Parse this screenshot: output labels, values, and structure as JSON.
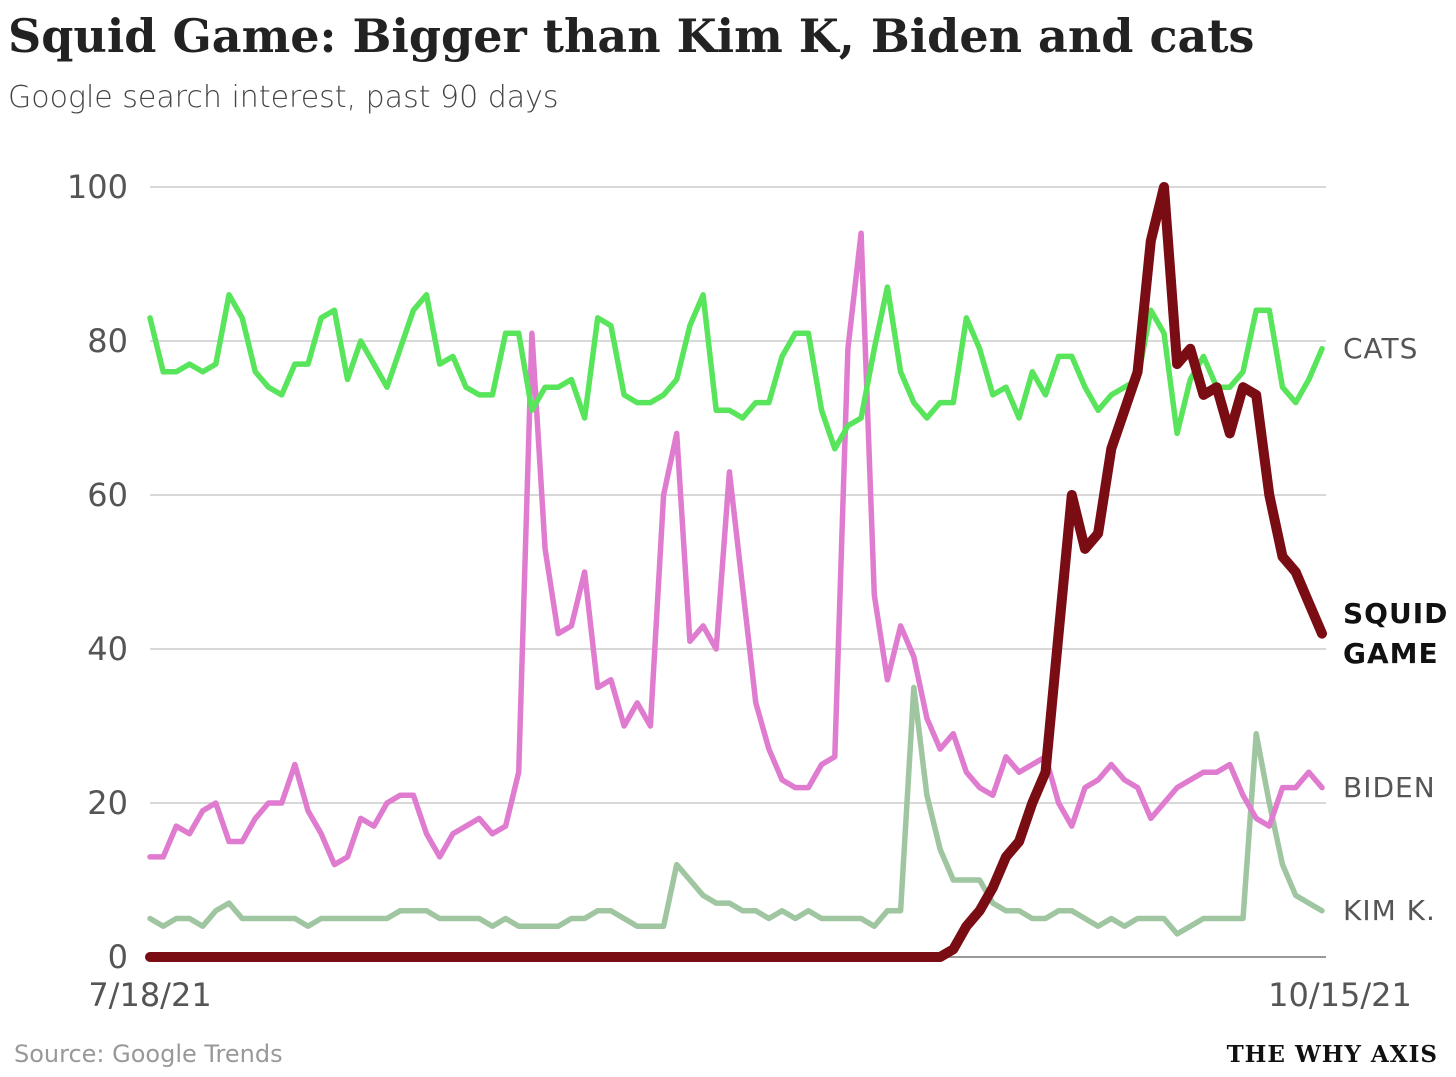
{
  "chart_data": {
    "type": "line",
    "title": "Squid Game: Bigger than Kim K, Biden and cats",
    "subtitle": "Google search interest, past 90 days",
    "source": "Source: Google Trends",
    "brand": "THE WHY AXIS",
    "categories": [
      "7/18/21",
      null,
      null,
      null,
      null,
      null,
      null,
      null,
      null,
      null,
      null,
      null,
      null,
      null,
      null,
      null,
      null,
      null,
      null,
      null,
      null,
      null,
      null,
      null,
      null,
      null,
      null,
      null,
      null,
      null,
      null,
      null,
      null,
      null,
      null,
      null,
      null,
      null,
      null,
      null,
      null,
      null,
      null,
      null,
      null,
      null,
      null,
      null,
      null,
      null,
      null,
      null,
      null,
      null,
      null,
      null,
      null,
      null,
      null,
      null,
      null,
      null,
      null,
      null,
      null,
      null,
      null,
      null,
      null,
      null,
      null,
      null,
      null,
      null,
      null,
      null,
      null,
      null,
      null,
      null,
      null,
      null,
      null,
      null,
      null,
      null,
      null,
      null,
      null,
      "10/15/21"
    ],
    "ylim": [
      0,
      100
    ],
    "yticks": [
      0,
      20,
      40,
      60,
      80,
      100
    ],
    "grid": true,
    "series": [
      {
        "name": "KIM K.",
        "color": "#9fc6a0",
        "values": [
          5,
          4,
          5,
          5,
          4,
          6,
          7,
          5,
          5,
          5,
          5,
          5,
          4,
          5,
          5,
          5,
          5,
          5,
          5,
          6,
          6,
          6,
          5,
          5,
          5,
          5,
          4,
          5,
          4,
          4,
          4,
          4,
          5,
          5,
          6,
          6,
          5,
          4,
          4,
          4,
          12,
          10,
          8,
          7,
          7,
          6,
          6,
          5,
          6,
          5,
          6,
          5,
          5,
          5,
          5,
          4,
          6,
          6,
          35,
          21,
          14,
          10,
          10,
          10,
          7,
          6,
          6,
          5,
          5,
          6,
          6,
          5,
          4,
          5,
          4,
          5,
          5,
          5,
          3,
          4,
          5,
          5,
          5,
          5,
          29,
          20,
          12,
          8,
          7,
          6
        ]
      },
      {
        "name": "BIDEN",
        "color": "#e07ccf",
        "values": [
          13,
          13,
          17,
          16,
          19,
          20,
          15,
          15,
          18,
          20,
          20,
          25,
          19,
          16,
          12,
          13,
          18,
          17,
          20,
          21,
          21,
          16,
          13,
          16,
          17,
          18,
          16,
          17,
          24,
          81,
          53,
          42,
          43,
          50,
          35,
          36,
          30,
          33,
          30,
          60,
          68,
          41,
          43,
          40,
          63,
          48,
          33,
          27,
          23,
          22,
          22,
          25,
          26,
          79,
          94,
          47,
          36,
          43,
          39,
          31,
          27,
          29,
          24,
          22,
          21,
          26,
          24,
          25,
          26,
          20,
          17,
          22,
          23,
          25,
          23,
          22,
          18,
          20,
          22,
          23,
          24,
          24,
          25,
          21,
          18,
          17,
          22,
          22,
          24,
          22
        ]
      },
      {
        "name": "CATS",
        "color": "#58e55b",
        "values": [
          83,
          76,
          76,
          77,
          76,
          77,
          86,
          83,
          76,
          74,
          73,
          77,
          77,
          83,
          84,
          75,
          80,
          77,
          74,
          79,
          84,
          86,
          77,
          78,
          74,
          73,
          73,
          81,
          81,
          71,
          74,
          74,
          75,
          70,
          83,
          82,
          73,
          72,
          72,
          73,
          75,
          82,
          86,
          71,
          71,
          70,
          72,
          72,
          78,
          81,
          81,
          71,
          66,
          69,
          70,
          79,
          87,
          76,
          72,
          70,
          72,
          72,
          83,
          79,
          73,
          74,
          70,
          76,
          73,
          78,
          78,
          74,
          71,
          73,
          74,
          75,
          84,
          81,
          68,
          75,
          78,
          74,
          74,
          76,
          84,
          84,
          74,
          72,
          75,
          79
        ]
      },
      {
        "name": "SQUID GAME",
        "color": "#7a0c14",
        "values": [
          0,
          0,
          0,
          0,
          0,
          0,
          0,
          0,
          0,
          0,
          0,
          0,
          0,
          0,
          0,
          0,
          0,
          0,
          0,
          0,
          0,
          0,
          0,
          0,
          0,
          0,
          0,
          0,
          0,
          0,
          0,
          0,
          0,
          0,
          0,
          0,
          0,
          0,
          0,
          0,
          0,
          0,
          0,
          0,
          0,
          0,
          0,
          0,
          0,
          0,
          0,
          0,
          0,
          0,
          0,
          0,
          0,
          0,
          0,
          0,
          0,
          1,
          4,
          6,
          9,
          13,
          15,
          20,
          24,
          42,
          60,
          53,
          55,
          66,
          71,
          76,
          93,
          100,
          77,
          79,
          73,
          74,
          68,
          74,
          73,
          60,
          52,
          50,
          46,
          42
        ]
      }
    ]
  }
}
